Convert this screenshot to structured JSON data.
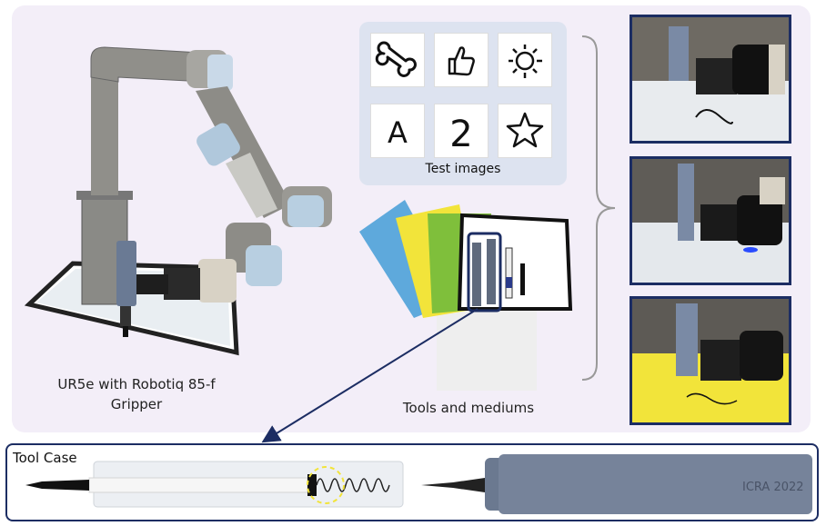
{
  "robot": {
    "caption_line1": "UR5e with Robotiq 85-f",
    "caption_line2": "Gripper"
  },
  "test_images": {
    "label": "Test images",
    "items": [
      "bone-icon",
      "thumbs-up-icon",
      "sun-icon",
      "letter-a",
      "digit-2",
      "star-icon"
    ],
    "letter": "A",
    "digit": "2"
  },
  "tools": {
    "label": "Tools and mediums",
    "paper_colors": [
      "#5ea9dc",
      "#f2e43a",
      "#7fbf3b",
      "#ffffff"
    ]
  },
  "tool_case": {
    "title": "Tool Case",
    "engraving": "ICRA 2022"
  },
  "colors": {
    "frame": "#1c2d63",
    "panel": "#f3eef8",
    "highlight": "#f2e43a"
  }
}
